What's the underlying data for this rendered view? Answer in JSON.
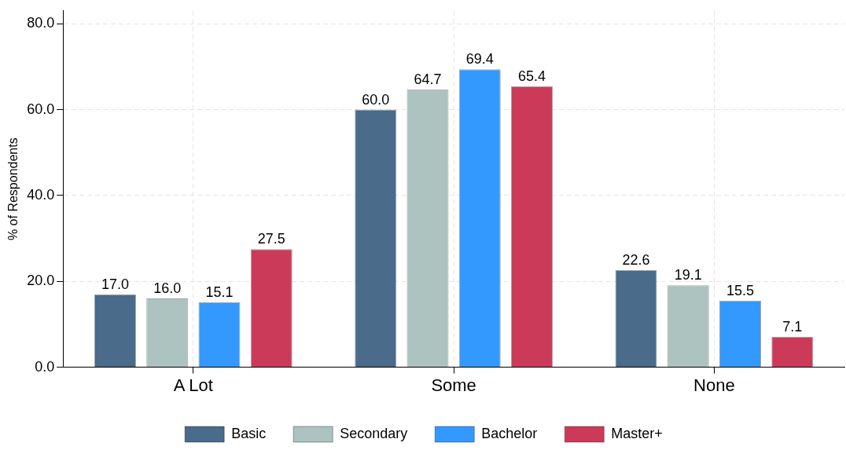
{
  "chart_data": {
    "type": "bar",
    "ylabel": "% of Respondents",
    "categories": [
      "A Lot",
      "Some",
      "None"
    ],
    "series": [
      {
        "name": "Basic",
        "color": "#4a6b8a",
        "values": [
          17.0,
          60.0,
          22.6
        ],
        "value_labels": [
          "17.0",
          "60.0",
          "22.6"
        ]
      },
      {
        "name": "Secondary",
        "color": "#adc3bf",
        "values": [
          16.0,
          64.7,
          19.1
        ],
        "value_labels": [
          "16.0",
          "64.7",
          "19.1"
        ]
      },
      {
        "name": "Bachelor",
        "color": "#3399ff",
        "values": [
          15.1,
          69.4,
          15.5
        ],
        "value_labels": [
          "15.1",
          "69.4",
          "15.5"
        ]
      },
      {
        "name": "Master+",
        "color": "#cc3a5a",
        "values": [
          27.5,
          65.4,
          7.1
        ],
        "value_labels": [
          "27.5",
          "65.4",
          "7.1"
        ]
      }
    ],
    "ylim": [
      0,
      83
    ],
    "yticks": [
      {
        "value": 0,
        "label": "0.0"
      },
      {
        "value": 20,
        "label": "20.0"
      },
      {
        "value": 40,
        "label": "40.0"
      },
      {
        "value": 60,
        "label": "60.0"
      },
      {
        "value": 80,
        "label": "80.0"
      }
    ],
    "grid": true,
    "legend": "bottom"
  }
}
